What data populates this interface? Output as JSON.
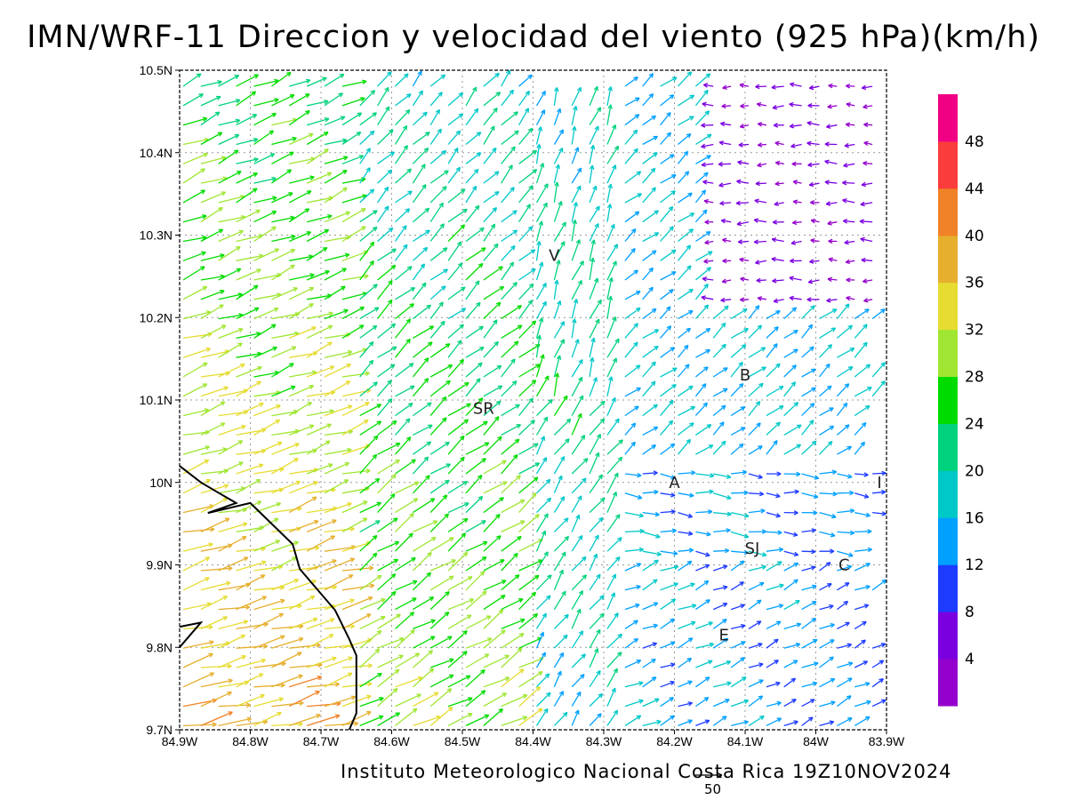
{
  "title": "IMN/WRF-11 Direccion y velocidad del viento (925 hPa)(km/h)",
  "credit": "Instituto Meteorologico Nacional Costa Rica 19Z10NOV2024",
  "reference_vector_label": "50",
  "map_extent": {
    "lon_min": -84.9,
    "lon_max": -83.9,
    "lat_min": 9.7,
    "lat_max": 10.5
  },
  "lon_ticks": [
    {
      "value": -84.9,
      "label": "84.9W"
    },
    {
      "value": -84.8,
      "label": "84.8W"
    },
    {
      "value": -84.7,
      "label": "84.7W"
    },
    {
      "value": -84.6,
      "label": "84.6W"
    },
    {
      "value": -84.5,
      "label": "84.5W"
    },
    {
      "value": -84.4,
      "label": "84.4W"
    },
    {
      "value": -84.3,
      "label": "84.3W"
    },
    {
      "value": -84.2,
      "label": "84.2W"
    },
    {
      "value": -84.1,
      "label": "84.1W"
    },
    {
      "value": -84.0,
      "label": "84W"
    },
    {
      "value": -83.9,
      "label": "83.9W"
    }
  ],
  "lat_ticks": [
    {
      "value": 9.7,
      "label": "9.7N"
    },
    {
      "value": 9.8,
      "label": "9.8N"
    },
    {
      "value": 9.9,
      "label": "9.9N"
    },
    {
      "value": 10.0,
      "label": "10N"
    },
    {
      "value": 10.1,
      "label": "10.1N"
    },
    {
      "value": 10.2,
      "label": "10.2N"
    },
    {
      "value": 10.3,
      "label": "10.3N"
    },
    {
      "value": 10.4,
      "label": "10.4N"
    },
    {
      "value": 10.5,
      "label": "10.5N"
    }
  ],
  "city_labels": [
    {
      "text": "V",
      "lon": -84.37,
      "lat": 10.275
    },
    {
      "text": "SR",
      "lon": -84.47,
      "lat": 10.09
    },
    {
      "text": "B",
      "lon": -84.1,
      "lat": 10.13
    },
    {
      "text": "A",
      "lon": -84.2,
      "lat": 10.0
    },
    {
      "text": "I",
      "lon": -83.91,
      "lat": 10.0
    },
    {
      "text": "SJ",
      "lon": -84.09,
      "lat": 9.92
    },
    {
      "text": "C",
      "lon": -83.96,
      "lat": 9.9
    },
    {
      "text": "E",
      "lon": -84.13,
      "lat": 9.815
    }
  ],
  "coastline": [
    [
      -84.9,
      10.02
    ],
    [
      -84.87,
      10.0
    ],
    [
      -84.84,
      9.985
    ],
    [
      -84.82,
      9.975
    ],
    [
      -84.86,
      9.963
    ],
    [
      -84.8,
      9.975
    ],
    [
      -84.77,
      9.95
    ],
    [
      -84.74,
      9.925
    ],
    [
      -84.73,
      9.895
    ],
    [
      -84.72,
      9.885
    ],
    [
      -84.7,
      9.865
    ],
    [
      -84.68,
      9.845
    ],
    [
      -84.66,
      9.81
    ],
    [
      -84.65,
      9.79
    ],
    [
      -84.65,
      9.76
    ],
    [
      -84.65,
      9.72
    ],
    [
      -84.66,
      9.7
    ]
  ],
  "coast_fragment": [
    [
      -84.9,
      9.8
    ],
    [
      -84.87,
      9.83
    ],
    [
      -84.9,
      9.825
    ]
  ],
  "colorbar": {
    "levels": [
      "4",
      "8",
      "12",
      "16",
      "20",
      "24",
      "28",
      "32",
      "36",
      "40",
      "44",
      "48"
    ],
    "colors": [
      "#9400cc",
      "#7b00e0",
      "#1e3cff",
      "#00a0ff",
      "#00c8c8",
      "#00d27d",
      "#00dc00",
      "#a0e632",
      "#e6dc32",
      "#e6af2d",
      "#f08228",
      "#fa3c3c",
      "#f00082"
    ]
  },
  "wind_field": {
    "grid_lon_step": 0.025,
    "grid_lat_step": 0.0235,
    "units": "km/h"
  }
}
